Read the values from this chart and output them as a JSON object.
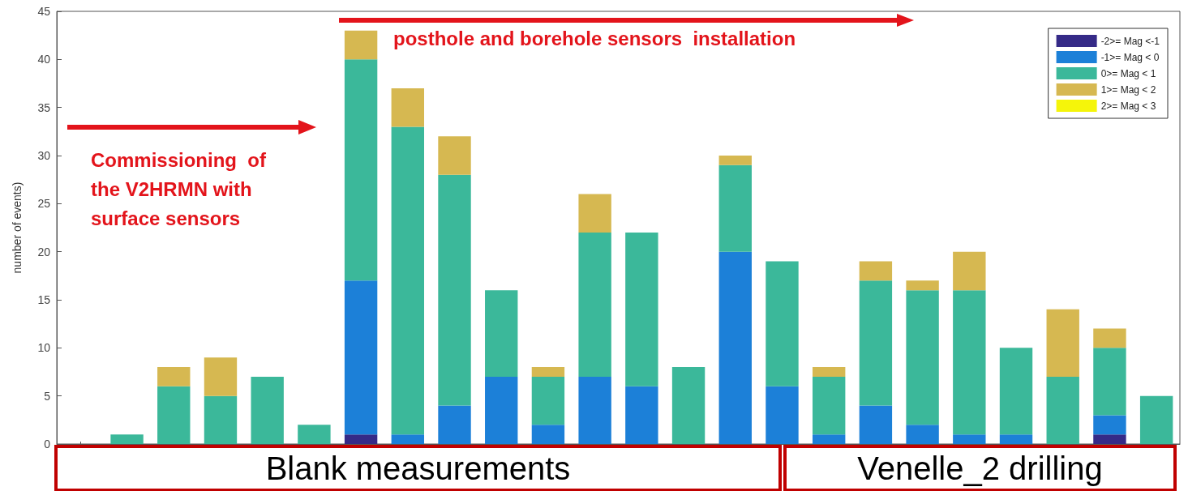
{
  "chart_data": {
    "type": "bar",
    "stacked": true,
    "ylabel": "number of events)",
    "categories": [
      null,
      null,
      null,
      null,
      null,
      null,
      null,
      null,
      null,
      null,
      null,
      null,
      null,
      null,
      null,
      null,
      null,
      null,
      null,
      null,
      null,
      null,
      null,
      null
    ],
    "series": [
      {
        "name": "-2>= Mag <-1",
        "color": "#352a87",
        "values": [
          0,
          0,
          0,
          0,
          0,
          0,
          1,
          0,
          0,
          0,
          0,
          0,
          0,
          0,
          0,
          0,
          0,
          0,
          0,
          0,
          0,
          0,
          1,
          0
        ]
      },
      {
        "name": "-1>= Mag < 0",
        "color": "#1c80d8",
        "values": [
          0,
          0,
          0,
          0,
          0,
          0,
          16,
          1,
          4,
          7,
          2,
          7,
          6,
          0,
          20,
          6,
          1,
          4,
          2,
          1,
          1,
          0,
          2,
          0
        ]
      },
      {
        "name": "0>= Mag < 1",
        "color": "#3bb89a",
        "values": [
          0,
          1,
          6,
          5,
          7,
          2,
          23,
          32,
          24,
          9,
          5,
          15,
          16,
          8,
          9,
          13,
          6,
          13,
          14,
          15,
          9,
          7,
          7,
          5
        ]
      },
      {
        "name": "1>= Mag < 2",
        "color": "#d6b851",
        "values": [
          0,
          0,
          2,
          4,
          0,
          0,
          3,
          4,
          4,
          0,
          1,
          4,
          0,
          0,
          1,
          0,
          1,
          2,
          1,
          4,
          0,
          7,
          2,
          0
        ]
      },
      {
        "name": "2>= Mag < 3",
        "color": "#f5f50a",
        "values": [
          0,
          0,
          0,
          0,
          0,
          0,
          0,
          0,
          0,
          0,
          0,
          0,
          0,
          0,
          0,
          0,
          0,
          0,
          0,
          0,
          0,
          0,
          0,
          0
        ]
      }
    ],
    "ylim": [
      0,
      45
    ],
    "yticks": [
      0,
      5,
      10,
      15,
      20,
      25,
      30,
      35,
      40,
      45
    ],
    "grid": false,
    "legend": "top right",
    "annotations": [
      "Commissioning  of the V2HRMN with surface sensors",
      "posthole and borehole sensors  installation",
      "Blank measurements",
      "Venelle_2 drilling"
    ]
  }
}
